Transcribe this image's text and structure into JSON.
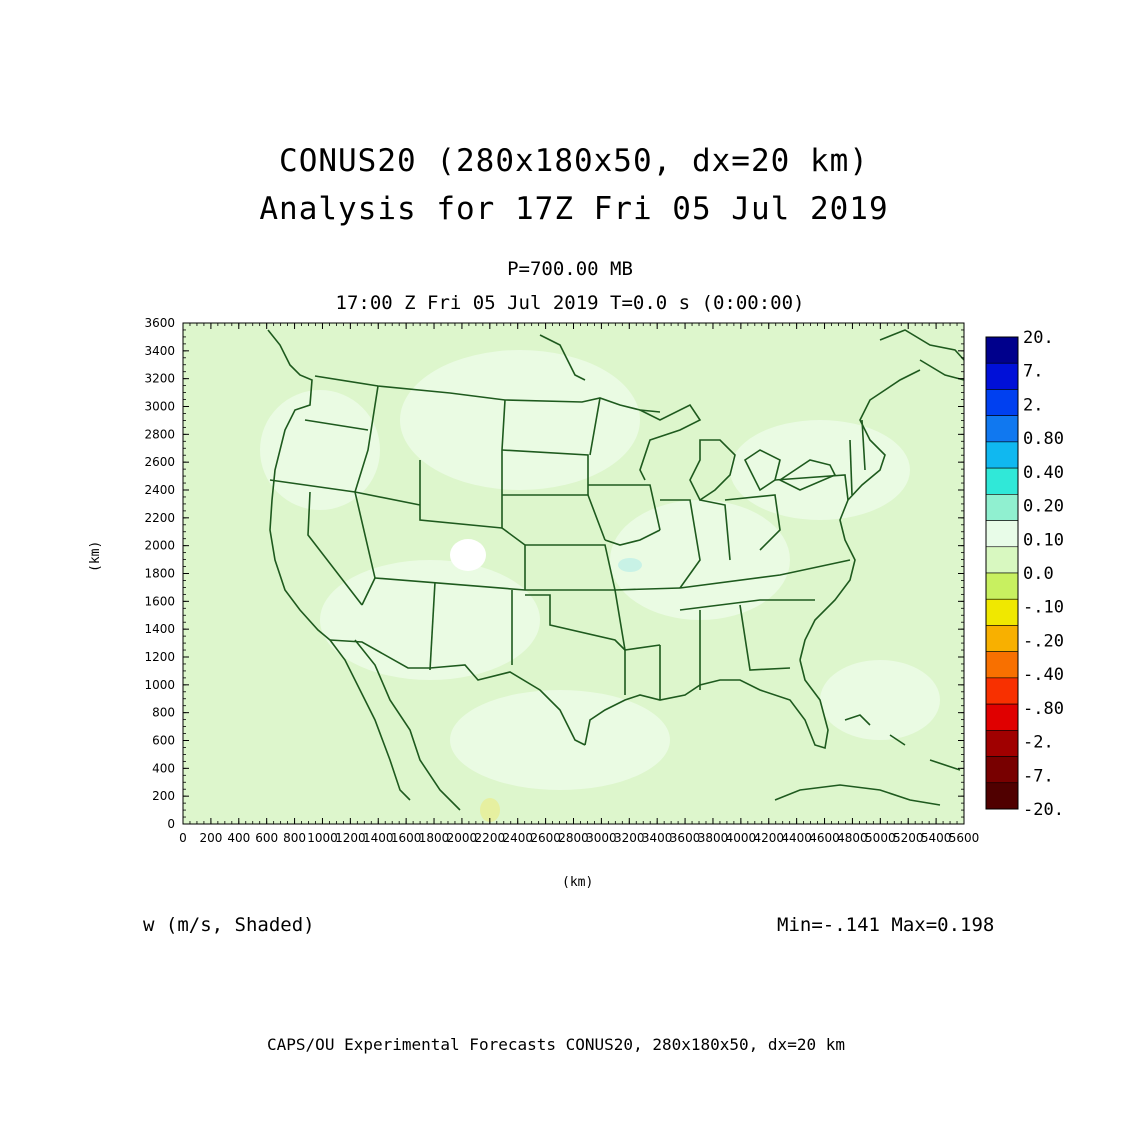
{
  "title_line1": "CONUS20 (280x180x50, dx=20 km)",
  "title_line2": "Analysis for 17Z Fri 05 Jul 2019",
  "level_label": "P=700.00 MB",
  "time_label": "17:00 Z Fri 05 Jul 2019    T=0.0 s (0:00:00)",
  "x_axis_label": "(km)",
  "y_axis_label": "(km)",
  "variable_label": "w (m/s, Shaded)",
  "min_max_label": "Min=-.141 Max=0.198",
  "footer": "CAPS/OU Experimental Forecasts  CONUS20, 280x180x50, dx=20 km",
  "map": {
    "background_color": "#ddf6cc",
    "border_color": "#1e5a1e"
  },
  "chart_data": {
    "type": "heatmap",
    "xlim": [
      0,
      5600
    ],
    "ylim": [
      0,
      3600
    ],
    "x_ticks": [
      0,
      200,
      400,
      600,
      800,
      1000,
      1200,
      1400,
      1600,
      1800,
      2000,
      2200,
      2400,
      2600,
      2800,
      3000,
      3200,
      3400,
      3600,
      3800,
      4000,
      4200,
      4400,
      4600,
      4800,
      5000,
      5200,
      5400,
      5600
    ],
    "y_ticks": [
      0,
      200,
      400,
      600,
      800,
      1000,
      1200,
      1400,
      1600,
      1800,
      2000,
      2200,
      2400,
      2600,
      2800,
      3000,
      3200,
      3400,
      3600
    ],
    "colorbar": [
      {
        "label": "20.",
        "color": "#00008c"
      },
      {
        "label": "7.",
        "color": "#0010d8"
      },
      {
        "label": "2.",
        "color": "#0040f0"
      },
      {
        "label": "0.80",
        "color": "#1078f0"
      },
      {
        "label": "0.40",
        "color": "#10b8f0"
      },
      {
        "label": "0.20",
        "color": "#30e8d8"
      },
      {
        "label": "0.10",
        "color": "#90f0d0"
      },
      {
        "label": "0.0",
        "color": "#e8fce8"
      },
      {
        "label": "-.10",
        "color": "#d8f8c0"
      },
      {
        "label": "-.20",
        "color": "#c8f060"
      },
      {
        "label": "-.40",
        "color": "#f0e800"
      },
      {
        "label": "-.80",
        "color": "#f8b000"
      },
      {
        "label": "-2.",
        "color": "#f87000"
      },
      {
        "label": "-7.",
        "color": "#f83000"
      },
      {
        "label": "-20.",
        "color": "#e00000"
      },
      {
        "label": "",
        "color": "#a00000"
      },
      {
        "label": "",
        "color": "#780000"
      },
      {
        "label": "",
        "color": "#500000"
      }
    ]
  }
}
